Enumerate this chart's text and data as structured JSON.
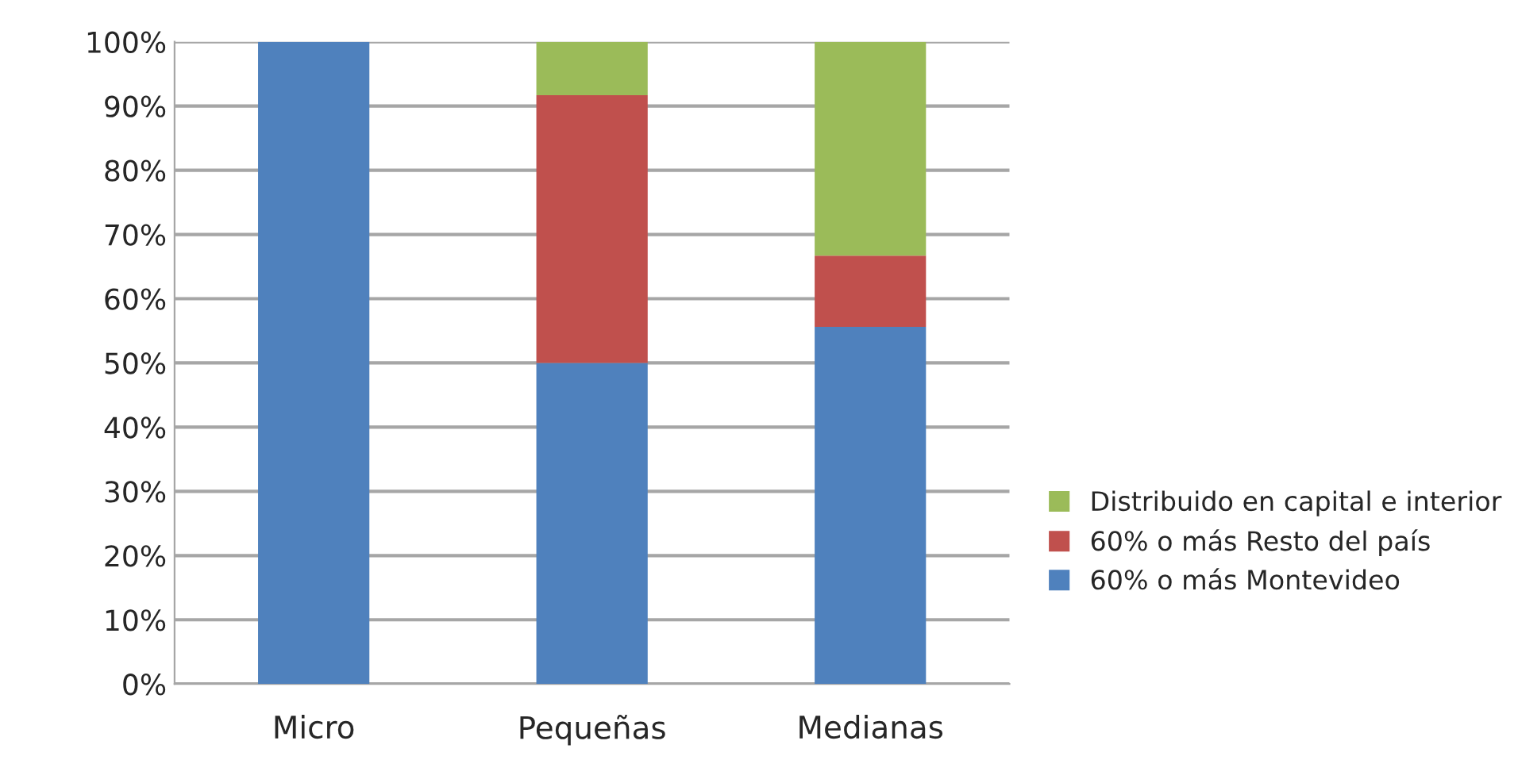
{
  "chart_data": {
    "type": "bar",
    "stacked": true,
    "categories": [
      "Micro",
      "Pequeñas",
      "Medianas"
    ],
    "series": [
      {
        "name": "60% o más Montevideo",
        "color": "#4f81bd",
        "values": [
          100,
          50,
          55.6
        ]
      },
      {
        "name": "60% o más Resto del país",
        "color": "#c0504d",
        "values": [
          null,
          41.7,
          11.1
        ]
      },
      {
        "name": "Distribuido en capital e interior",
        "color": "#9bbb59",
        "values": [
          null,
          8.3,
          33.3
        ]
      }
    ],
    "ylim": [
      0,
      100
    ],
    "yticks": [
      {
        "value": 0,
        "label": "0%"
      },
      {
        "value": 10,
        "label": "10%"
      },
      {
        "value": 20,
        "label": "20%"
      },
      {
        "value": 30,
        "label": "30%"
      },
      {
        "value": 40,
        "label": "40%"
      },
      {
        "value": 50,
        "label": "50%"
      },
      {
        "value": 60,
        "label": "60%"
      },
      {
        "value": 70,
        "label": "70%"
      },
      {
        "value": 80,
        "label": "80%"
      },
      {
        "value": 90,
        "label": "90%"
      },
      {
        "value": 100,
        "label": "100%"
      }
    ],
    "grid": "y",
    "legend": "right"
  }
}
